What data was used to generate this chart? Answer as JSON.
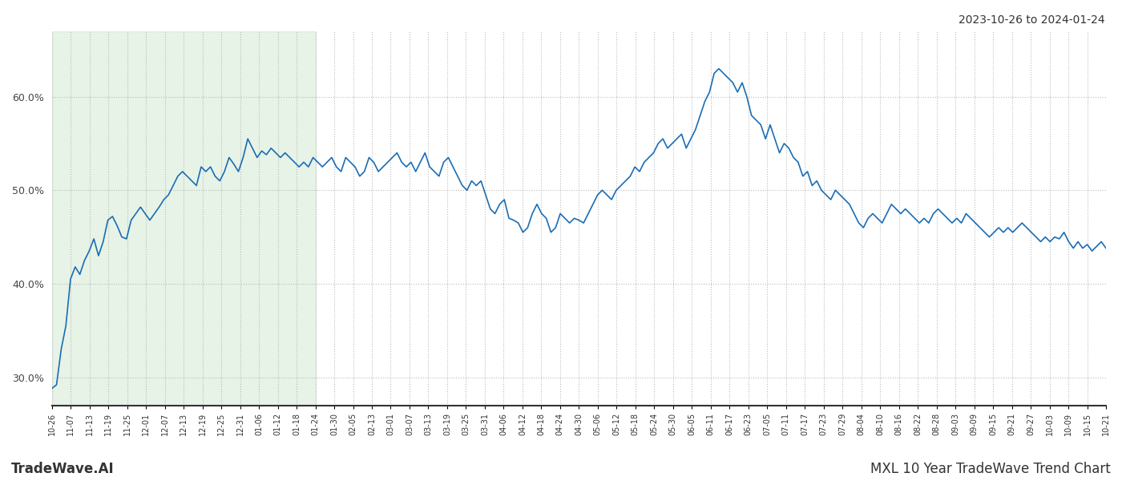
{
  "title_date_range": "2023-10-26 to 2024-01-24",
  "footer_left": "TradeWave.AI",
  "footer_right": "MXL 10 Year TradeWave Trend Chart",
  "line_color": "#1a6db5",
  "line_width": 1.2,
  "bg_color": "#ffffff",
  "grid_color": "#bbbbbb",
  "grid_style": "dotted",
  "shaded_region_color": "#c8e6c9",
  "shaded_region_alpha": 0.45,
  "ylim": [
    27.0,
    67.0
  ],
  "yticks": [
    30.0,
    40.0,
    50.0,
    60.0
  ],
  "x_labels": [
    "10-26",
    "11-07",
    "11-13",
    "11-19",
    "11-25",
    "12-01",
    "12-07",
    "12-13",
    "12-19",
    "12-25",
    "12-31",
    "01-06",
    "01-12",
    "01-18",
    "01-24",
    "01-30",
    "02-05",
    "02-13",
    "03-01",
    "03-07",
    "03-13",
    "03-19",
    "03-25",
    "03-31",
    "04-06",
    "04-12",
    "04-18",
    "04-24",
    "04-30",
    "05-06",
    "05-12",
    "05-18",
    "05-24",
    "05-30",
    "06-05",
    "06-11",
    "06-17",
    "06-23",
    "07-05",
    "07-11",
    "07-17",
    "07-23",
    "07-29",
    "08-04",
    "08-10",
    "08-16",
    "08-22",
    "08-28",
    "09-03",
    "09-09",
    "09-15",
    "09-21",
    "09-27",
    "10-03",
    "10-09",
    "10-15",
    "10-21"
  ],
  "shaded_x_start_label": "10-26",
  "shaded_x_end_label": "01-24",
  "values": [
    28.8,
    29.2,
    33.0,
    35.5,
    40.5,
    41.8,
    41.0,
    42.5,
    43.5,
    44.8,
    43.0,
    44.5,
    46.8,
    47.2,
    46.2,
    45.0,
    44.8,
    46.8,
    47.5,
    48.2,
    47.5,
    46.8,
    47.5,
    48.2,
    49.0,
    49.5,
    50.5,
    51.5,
    52.0,
    51.5,
    51.0,
    50.5,
    52.5,
    52.0,
    52.5,
    51.5,
    51.0,
    52.0,
    53.5,
    52.8,
    52.0,
    53.5,
    55.5,
    54.5,
    53.5,
    54.2,
    53.8,
    54.5,
    54.0,
    53.5,
    54.0,
    53.5,
    53.0,
    52.5,
    53.0,
    52.5,
    53.5,
    53.0,
    52.5,
    53.0,
    53.5,
    52.5,
    52.0,
    53.5,
    53.0,
    52.5,
    51.5,
    52.0,
    53.5,
    53.0,
    52.0,
    52.5,
    53.0,
    53.5,
    54.0,
    53.0,
    52.5,
    53.0,
    52.0,
    53.0,
    54.0,
    52.5,
    52.0,
    51.5,
    53.0,
    53.5,
    52.5,
    51.5,
    50.5,
    50.0,
    51.0,
    50.5,
    51.0,
    49.5,
    48.0,
    47.5,
    48.5,
    49.0,
    47.0,
    46.8,
    46.5,
    45.5,
    46.0,
    47.5,
    48.5,
    47.5,
    47.0,
    45.5,
    46.0,
    47.5,
    47.0,
    46.5,
    47.0,
    46.8,
    46.5,
    47.5,
    48.5,
    49.5,
    50.0,
    49.5,
    49.0,
    50.0,
    50.5,
    51.0,
    51.5,
    52.5,
    52.0,
    53.0,
    53.5,
    54.0,
    55.0,
    55.5,
    54.5,
    55.0,
    55.5,
    56.0,
    54.5,
    55.5,
    56.5,
    58.0,
    59.5,
    60.5,
    62.5,
    63.0,
    62.5,
    62.0,
    61.5,
    60.5,
    61.5,
    60.0,
    58.0,
    57.5,
    57.0,
    55.5,
    57.0,
    55.5,
    54.0,
    55.0,
    54.5,
    53.5,
    53.0,
    51.5,
    52.0,
    50.5,
    51.0,
    50.0,
    49.5,
    49.0,
    50.0,
    49.5,
    49.0,
    48.5,
    47.5,
    46.5,
    46.0,
    47.0,
    47.5,
    47.0,
    46.5,
    47.5,
    48.5,
    48.0,
    47.5,
    48.0,
    47.5,
    47.0,
    46.5,
    47.0,
    46.5,
    47.5,
    48.0,
    47.5,
    47.0,
    46.5,
    47.0,
    46.5,
    47.5,
    47.0,
    46.5,
    46.0,
    45.5,
    45.0,
    45.5,
    46.0,
    45.5,
    46.0,
    45.5,
    46.0,
    46.5,
    46.0,
    45.5,
    45.0,
    44.5,
    45.0,
    44.5,
    45.0,
    44.8,
    45.5,
    44.5,
    43.8,
    44.5,
    43.8,
    44.2,
    43.5,
    44.0,
    44.5,
    43.8
  ]
}
